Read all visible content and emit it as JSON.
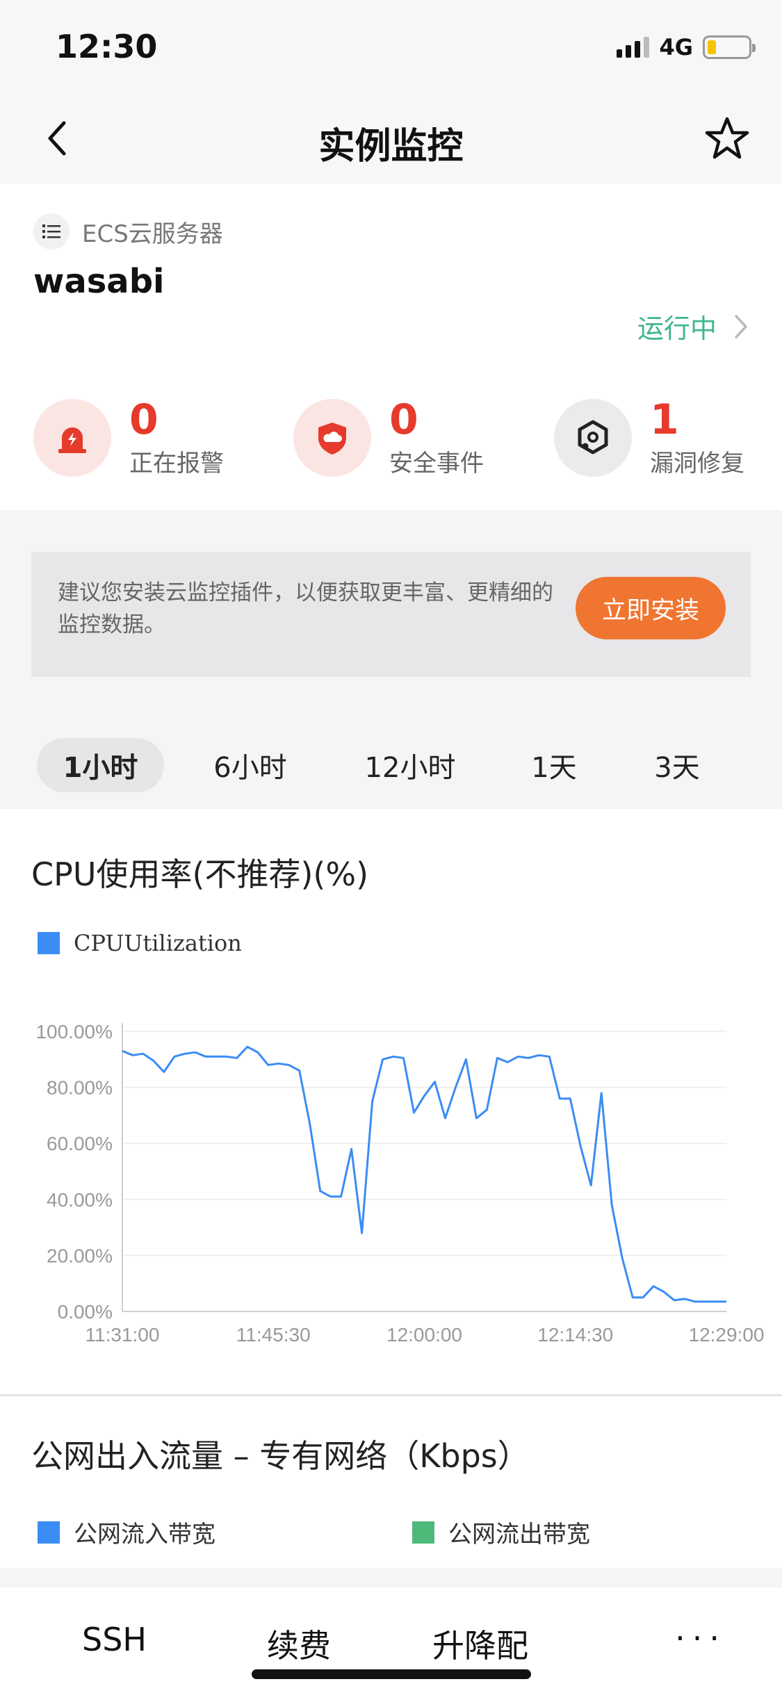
{
  "status_bar": {
    "time": "12:30",
    "network": "4G"
  },
  "nav": {
    "title": "实例监控"
  },
  "instance": {
    "type_label": "ECS云服务器",
    "name": "wasabi",
    "run_status": "运行中"
  },
  "stats": [
    {
      "value": "0",
      "label": "正在报警"
    },
    {
      "value": "0",
      "label": "安全事件"
    },
    {
      "value": "1",
      "label": "漏洞修复"
    }
  ],
  "plugin": {
    "message": "建议您安装云监控插件，以便获取更丰富、更精细的监控数据。",
    "button": "立即安装"
  },
  "time_tabs": [
    "1小时",
    "6小时",
    "12小时",
    "1天",
    "3天"
  ],
  "active_tab": "1小时",
  "cpu_chart": {
    "title": "CPU使用率(不推荐)(%)",
    "legend_color": "#3b8cf5",
    "chart_data": {
      "type": "line",
      "title": "CPU使用率(不推荐)(%)",
      "xlabel": "",
      "ylabel": "",
      "ylim": [
        0,
        100
      ],
      "y_ticks": [
        "0.00%",
        "20.00%",
        "40.00%",
        "60.00%",
        "80.00%",
        "100.00%"
      ],
      "x_ticks": [
        "11:31:00",
        "11:45:30",
        "12:00:00",
        "12:14:30",
        "12:29:00"
      ],
      "grid": true,
      "legend": "top-left",
      "series": [
        {
          "name": "CPUUtilization",
          "color": "#3b8cf5",
          "x_start": "11:31:00",
          "x_end": "12:29:00",
          "values": [
            93,
            91.5,
            92,
            89.5,
            85.5,
            91,
            92,
            92.5,
            91,
            91,
            91,
            90.5,
            94.5,
            92.5,
            88,
            88.5,
            88,
            86,
            67,
            43,
            41,
            41,
            58,
            28,
            75,
            90,
            91,
            90.5,
            71,
            77,
            82,
            69,
            80,
            90,
            69,
            72,
            90.5,
            89,
            91,
            90.5,
            91.5,
            91,
            76,
            76,
            59,
            45,
            78,
            38,
            19,
            5,
            5,
            9,
            7,
            4,
            4.5,
            3.5,
            3.5,
            3.5,
            3.5
          ]
        }
      ]
    }
  },
  "traffic": {
    "title": "公网出入流量 – 专有网络（Kbps）",
    "legend": [
      {
        "label": "公网流入带宽",
        "color": "#3b8cf5"
      },
      {
        "label": "公网流出带宽",
        "color": "#4fb97a"
      }
    ]
  },
  "bottom_bar": {
    "ssh": "SSH",
    "renew": "续费",
    "resize": "升降配",
    "more": "···"
  }
}
